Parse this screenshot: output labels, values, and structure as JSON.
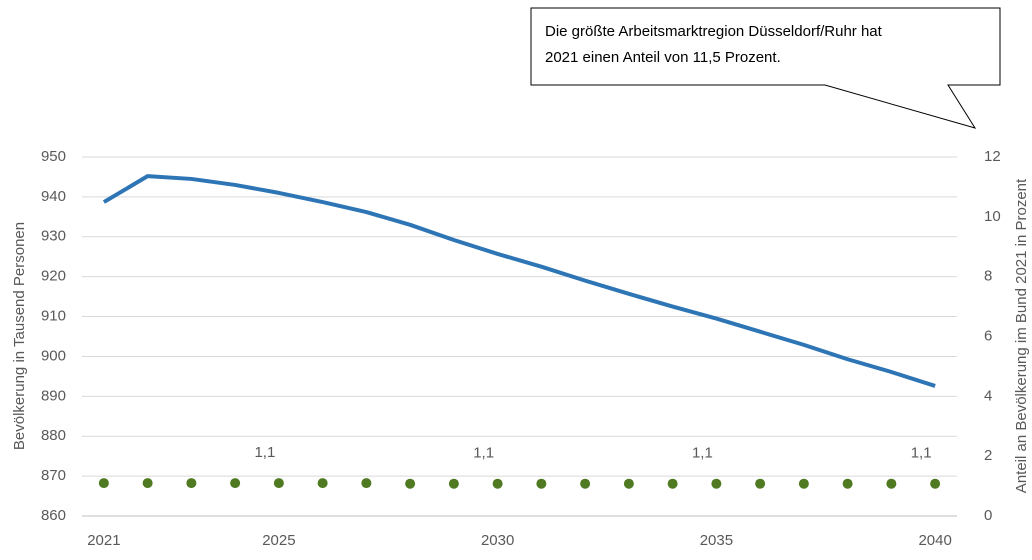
{
  "chart_data": {
    "type": "line",
    "annotation": [
      "Die größte Arbeitsmarktregion Düsseldorf/Ruhr hat",
      "2021 einen Anteil von 11,5 Prozent."
    ],
    "ylabel": "Bevölkerung in Tausend Personen",
    "y2label": "Anteil an Bevölkerung im Bund 2021 in Prozent",
    "x": [
      2021,
      2022,
      2023,
      2024,
      2025,
      2026,
      2027,
      2028,
      2029,
      2030,
      2031,
      2032,
      2033,
      2034,
      2035,
      2036,
      2037,
      2038,
      2039,
      2040
    ],
    "xlim": [
      2020.5,
      2040.5
    ],
    "xticks": [
      2021,
      2025,
      2030,
      2035,
      2040
    ],
    "ylim": [
      860,
      950
    ],
    "yticks": [
      860,
      870,
      880,
      890,
      900,
      910,
      920,
      930,
      940,
      950
    ],
    "y2lim": [
      0,
      12
    ],
    "y2ticks": [
      0,
      2,
      4,
      6,
      8,
      10,
      12
    ],
    "grid": true,
    "series": [
      {
        "color": "#2e75b6",
        "style": "line",
        "values": [
          938.7,
          945.2,
          944.5,
          943,
          941,
          938.7,
          936.2,
          933,
          929.2,
          925.7,
          922.5,
          919,
          915.7,
          912.5,
          909.5,
          906.2,
          902.9,
          899.3,
          896.1,
          892.6
        ]
      },
      {
        "color": "#4f7a21",
        "style": "markers",
        "axis": "y2",
        "values": [
          1.1,
          1.1,
          1.1,
          1.1,
          1.1,
          1.1,
          1.1,
          1.08,
          1.08,
          1.08,
          1.08,
          1.08,
          1.08,
          1.08,
          1.08,
          1.08,
          1.08,
          1.08,
          1.08,
          1.08
        ],
        "value_labels": [
          null,
          null,
          null,
          null,
          "1,1",
          null,
          null,
          null,
          null,
          "1,1",
          null,
          null,
          null,
          null,
          "1,1",
          null,
          null,
          null,
          null,
          "1,1"
        ]
      }
    ]
  }
}
